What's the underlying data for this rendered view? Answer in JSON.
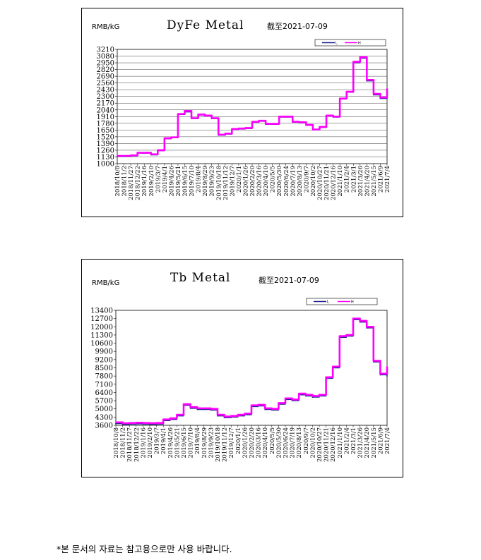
{
  "colors": {
    "line_L": "#1f1f8f",
    "line_H": "#ff00ff",
    "grid": "#444444"
  },
  "footnote": "*본 문서의 자료는 참고용으로만 사용 바랍니다.",
  "chart_data": [
    {
      "type": "line",
      "unit": "RMB/kG",
      "title": "DyFe Metal",
      "date_label": "截至2021-07-09",
      "legend": [
        "L",
        "H"
      ],
      "ylim": [
        1000,
        3210
      ],
      "yticks": [
        1000,
        1130,
        1260,
        1390,
        1520,
        1650,
        1780,
        1910,
        2040,
        2170,
        2300,
        2430,
        2560,
        2690,
        2820,
        2950,
        3080,
        3210
      ],
      "grid": true,
      "categories": [
        "2018/10/8",
        "2018/11/2",
        "2018/11/27",
        "2018/12/22",
        "2019/1/16",
        "2019/2/10",
        "2019/3/7",
        "2019/4/1",
        "2019/4/26",
        "2019/5/21",
        "2019/6/15",
        "2019/7/10",
        "2019/8/4",
        "2019/8/29",
        "2019/9/23",
        "2019/10/18",
        "2019/11/12",
        "2019/12/7",
        "2020/1/1",
        "2020/1/26",
        "2020/2/20",
        "2020/3/16",
        "2020/4/10",
        "2020/5/5",
        "2020/5/30",
        "2020/6/24",
        "2020/7/19",
        "2020/8/13",
        "2020/9/7",
        "2020/10/2",
        "2020/10/27",
        "2020/11/21",
        "2020/12/16",
        "2021/1/10",
        "2021/2/4",
        "2021/3/1",
        "2021/3/26",
        "2021/4/20",
        "2021/5/15",
        "2021/6/9",
        "2021/7/4"
      ],
      "series": [
        {
          "name": "L",
          "values": [
            1140,
            1140,
            1150,
            1200,
            1200,
            1170,
            1250,
            1480,
            1500,
            1950,
            2000,
            1870,
            1940,
            1920,
            1870,
            1550,
            1570,
            1660,
            1670,
            1680,
            1800,
            1820,
            1760,
            1760,
            1900,
            1900,
            1800,
            1790,
            1740,
            1650,
            1700,
            1920,
            1900,
            2250,
            2380,
            2950,
            3040,
            2600,
            2330,
            2260,
            2430
          ]
        },
        {
          "name": "H",
          "values": [
            1150,
            1150,
            1160,
            1210,
            1210,
            1180,
            1260,
            1490,
            1510,
            1960,
            2020,
            1880,
            1950,
            1930,
            1880,
            1560,
            1580,
            1670,
            1680,
            1690,
            1810,
            1830,
            1770,
            1770,
            1910,
            1910,
            1810,
            1800,
            1750,
            1660,
            1710,
            1930,
            1910,
            2260,
            2390,
            2970,
            3060,
            2620,
            2350,
            2280,
            2450
          ]
        }
      ]
    },
    {
      "type": "line",
      "unit": "RMB/kG",
      "title": "Tb Metal",
      "date_label": "截至2021-07-09",
      "legend": [
        "L",
        "H"
      ],
      "ylim": [
        3600,
        13400
      ],
      "yticks": [
        3600,
        4300,
        5000,
        5700,
        6400,
        7100,
        7800,
        8500,
        9200,
        9900,
        10600,
        11300,
        12000,
        12700,
        13400
      ],
      "grid": false,
      "categories": [
        "2018/10/8",
        "2018/11/2",
        "2018/11/27",
        "2018/12/22",
        "2019/1/16",
        "2019/2/10",
        "2019/3/7",
        "2019/4/1",
        "2019/4/26",
        "2019/5/21",
        "2019/6/15",
        "2019/7/10",
        "2019/8/4",
        "2019/8/29",
        "2019/9/23",
        "2019/10/18",
        "2019/11/12",
        "2019/12/7",
        "2020/1/1",
        "2020/1/26",
        "2020/2/20",
        "2020/3/16",
        "2020/4/10",
        "2020/5/5",
        "2020/5/30",
        "2020/6/24",
        "2020/7/19",
        "2020/8/13",
        "2020/9/7",
        "2020/10/2",
        "2020/10/27",
        "2020/11/21",
        "2020/12/16",
        "2021/1/10",
        "2021/2/4",
        "2021/3/1",
        "2021/3/26",
        "2021/4/20",
        "2021/5/15",
        "2021/6/9",
        "2021/7/4"
      ],
      "series": [
        {
          "name": "L",
          "values": [
            3750,
            3680,
            3700,
            3720,
            3700,
            3680,
            3700,
            4000,
            4100,
            4400,
            5300,
            5050,
            4950,
            4950,
            4900,
            4400,
            4250,
            4300,
            4400,
            4500,
            5200,
            5250,
            4950,
            4900,
            5400,
            5800,
            5700,
            6200,
            6100,
            6000,
            6100,
            7600,
            8500,
            11100,
            11200,
            12600,
            12400,
            11900,
            9000,
            7900,
            7800
          ]
        },
        {
          "name": "H",
          "values": [
            3850,
            3780,
            3800,
            3820,
            3800,
            3780,
            3800,
            4100,
            4200,
            4500,
            5400,
            5150,
            5050,
            5050,
            5000,
            4500,
            4350,
            4400,
            4500,
            4600,
            5300,
            5350,
            5050,
            5000,
            5500,
            5900,
            5800,
            6300,
            6200,
            6100,
            6200,
            7700,
            8600,
            11200,
            11300,
            12700,
            12500,
            12000,
            9100,
            8000,
            8600
          ]
        }
      ]
    }
  ]
}
